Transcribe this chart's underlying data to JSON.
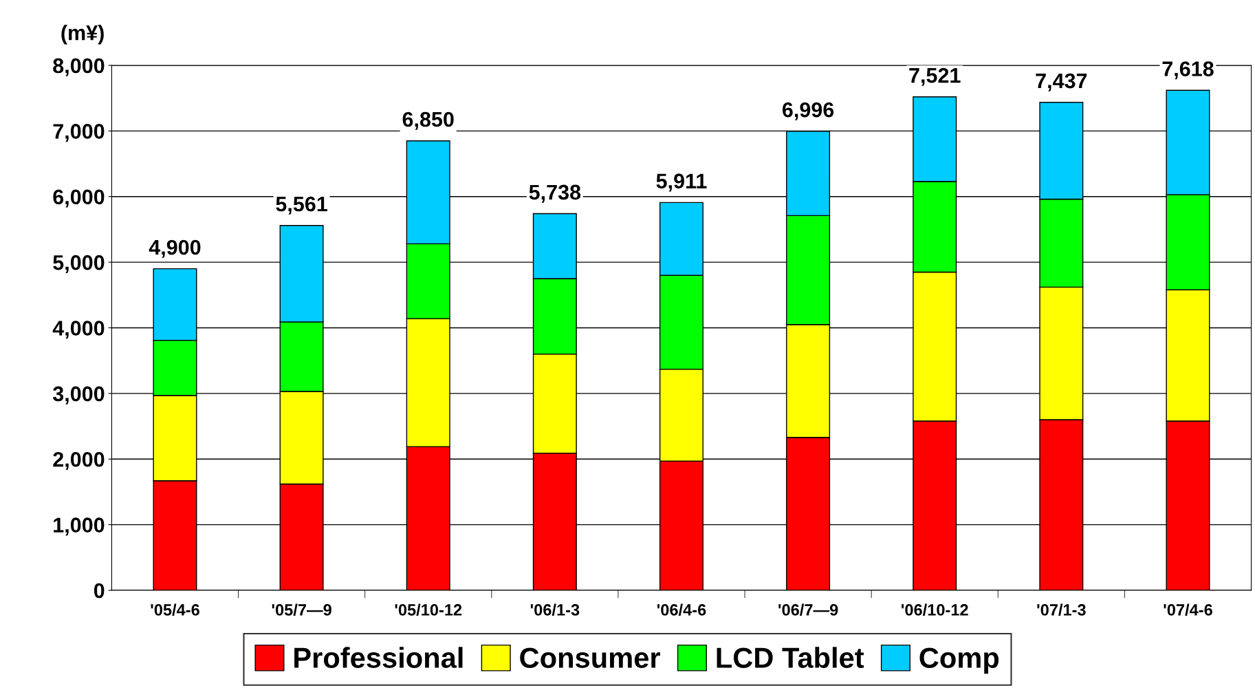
{
  "chart_data": {
    "type": "bar",
    "stacked": true,
    "ylabel": "(m¥)",
    "categories": [
      "'05/4-6",
      "'05/7—9",
      "'05/10-12",
      "'06/1-3",
      "'06/4-6",
      "'06/7—9",
      "'06/10-12",
      "'07/1-3",
      "'07/4-6"
    ],
    "series": [
      {
        "name": "Professional",
        "color": "#ff0000",
        "values": [
          1670,
          1620,
          2190,
          2090,
          1970,
          2330,
          2580,
          2600,
          2580
        ]
      },
      {
        "name": "Consumer",
        "color": "#ffff00",
        "values": [
          1300,
          1410,
          1950,
          1510,
          1400,
          1720,
          2270,
          2020,
          2000
        ]
      },
      {
        "name": "LCD Tablet",
        "color": "#00ff00",
        "values": [
          840,
          1060,
          1140,
          1150,
          1430,
          1660,
          1380,
          1340,
          1450
        ]
      },
      {
        "name": "Comp",
        "color": "#00ccff",
        "values": [
          1090,
          1470,
          1570,
          990,
          1110,
          1286,
          1290,
          1477,
          1590
        ]
      }
    ],
    "totals": [
      "4,900",
      "5,561",
      "6,850",
      "5,738",
      "5,911",
      "6,996",
      "7,521",
      "7,437",
      "7,618"
    ],
    "ylim": [
      0,
      8000
    ],
    "yticks": [
      {
        "value": 0,
        "label": "0"
      },
      {
        "value": 1000,
        "label": "1,000"
      },
      {
        "value": 2000,
        "label": "2,000"
      },
      {
        "value": 3000,
        "label": "3,000"
      },
      {
        "value": 4000,
        "label": "4,000"
      },
      {
        "value": 5000,
        "label": "5,000"
      },
      {
        "value": 6000,
        "label": "6,000"
      },
      {
        "value": 7000,
        "label": "7,000"
      },
      {
        "value": 8000,
        "label": "8,000"
      }
    ],
    "grid": "y",
    "legend": "bottom"
  }
}
